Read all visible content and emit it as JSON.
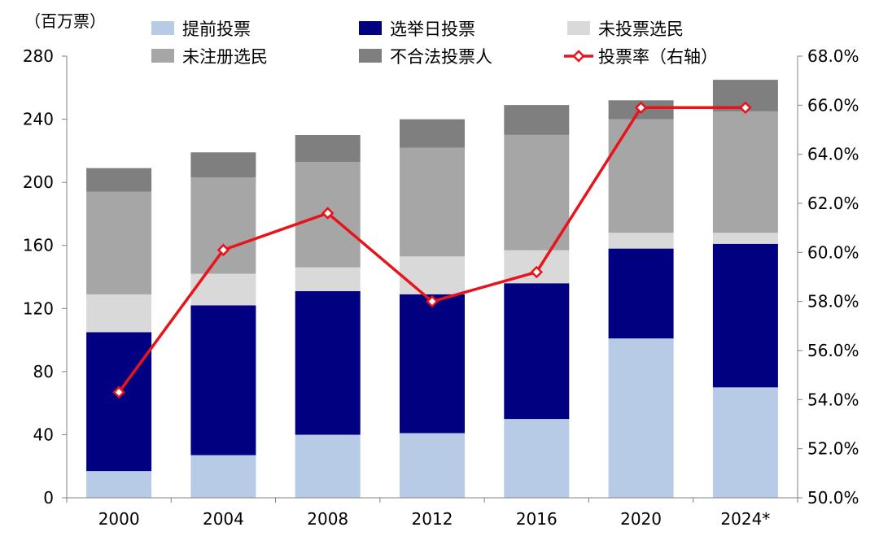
{
  "chart_data": {
    "type": "bar",
    "stacked": true,
    "y_unit_label": "（百万票）",
    "categories": [
      "2000",
      "2004",
      "2008",
      "2012",
      "2016",
      "2020",
      "2024*"
    ],
    "ylim": [
      0,
      280
    ],
    "yticks": [
      "0",
      "40",
      "80",
      "120",
      "160",
      "200",
      "240",
      "280"
    ],
    "y2lim": [
      50,
      68
    ],
    "y2ticks": [
      "50.0%",
      "52.0%",
      "54.0%",
      "56.0%",
      "58.0%",
      "60.0%",
      "62.0%",
      "64.0%",
      "66.0%",
      "68.0%"
    ],
    "legend_position": "top",
    "series": [
      {
        "name": "提前投票",
        "color": "#b7cbe6",
        "values": [
          17,
          27,
          40,
          41,
          50,
          101,
          70
        ]
      },
      {
        "name": "选举日投票",
        "color": "#000080",
        "values": [
          88,
          95,
          91,
          88,
          86,
          57,
          91
        ]
      },
      {
        "name": "未投票选民",
        "color": "#d9d9d9",
        "values": [
          24,
          20,
          15,
          24,
          21,
          10,
          7
        ]
      },
      {
        "name": "未注册选民",
        "color": "#a6a6a6",
        "values": [
          65,
          61,
          67,
          69,
          73,
          72,
          77
        ]
      },
      {
        "name": "不合法投票人",
        "color": "#7f7f7f",
        "values": [
          15,
          16,
          17,
          18,
          19,
          12,
          20
        ]
      }
    ],
    "line": {
      "name": "投票率（右轴）",
      "color": "#e8141b",
      "values": [
        54.3,
        60.1,
        61.6,
        58.0,
        59.2,
        65.9,
        65.9
      ]
    },
    "legend": [
      {
        "name": "提前投票",
        "kind": "box",
        "color": "#b7cbe6"
      },
      {
        "name": "选举日投票",
        "kind": "box",
        "color": "#000080"
      },
      {
        "name": "未投票选民",
        "kind": "box",
        "color": "#d9d9d9"
      },
      {
        "name": "未注册选民",
        "kind": "box",
        "color": "#a6a6a6"
      },
      {
        "name": "不合法投票人",
        "kind": "box",
        "color": "#7f7f7f"
      },
      {
        "name": "投票率（右轴）",
        "kind": "line",
        "color": "#e8141b"
      }
    ]
  }
}
